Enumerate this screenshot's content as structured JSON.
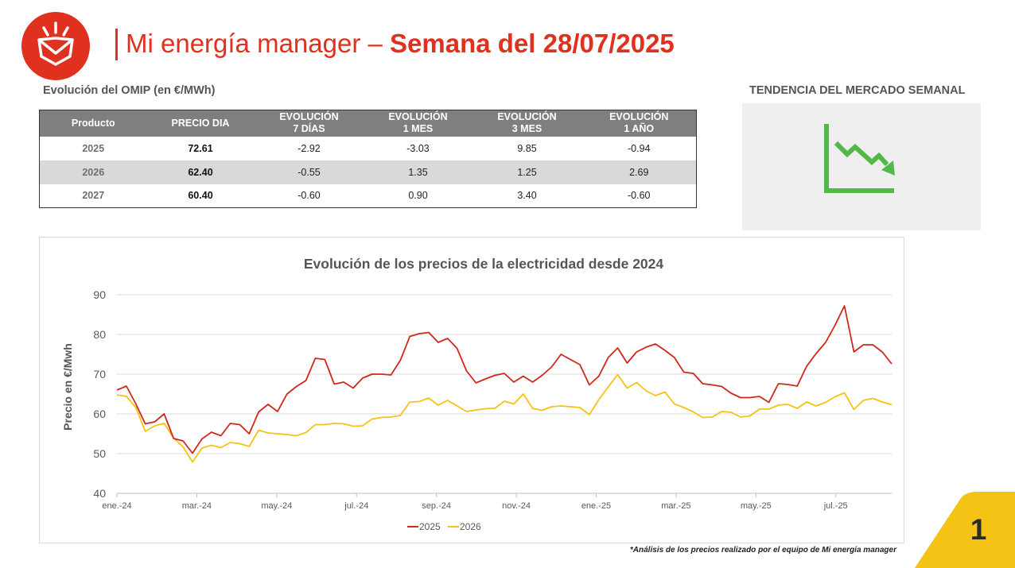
{
  "header": {
    "title_light": "Mi energía manager",
    "title_dash": "–",
    "title_bold": "Semana del 28/07/2025"
  },
  "logo": {
    "icon": "envelope-sun-icon",
    "color": "#e0301e"
  },
  "omip": {
    "title": "Evolución del OMIP (en €/MWh)",
    "columns": [
      [
        "Producto"
      ],
      [
        "PRECIO DIA"
      ],
      [
        "EVOLUCIÓN",
        "7 DÍAS"
      ],
      [
        "EVOLUCIÓN",
        "1 MES"
      ],
      [
        "EVOLUCIÓN",
        "3 MES"
      ],
      [
        "EVOLUCIÓN",
        "1 AÑO"
      ]
    ],
    "rows": [
      [
        "2025",
        "72.61",
        "-2.92",
        "-3.03",
        "9.85",
        "-0.94"
      ],
      [
        "2026",
        "62.40",
        "-0.55",
        "1.35",
        "1.25",
        "2.69"
      ],
      [
        "2027",
        "60.40",
        "-0.60",
        "0.90",
        "3.40",
        "-0.60"
      ]
    ]
  },
  "trend": {
    "title": "TENDENCIA DEL MERCADO SEMANAL",
    "icon": "downtrend-chart-icon",
    "color": "#52b848"
  },
  "chart_data": {
    "type": "line",
    "title": "Evolución de los precios de la electricidad desde 2024",
    "ylabel": "Precio en €/Mwh",
    "xlabel": "",
    "ylim": [
      40,
      90
    ],
    "yticks": [
      40,
      50,
      60,
      70,
      80,
      90
    ],
    "x_tick_labels": [
      "ene.-24",
      "mar.-24",
      "may.-24",
      "jul.-24",
      "sep.-24",
      "nov.-24",
      "ene.-25",
      "mar.-25",
      "may.-25",
      "jul.-25"
    ],
    "grid": true,
    "legend": "bottom-center",
    "series": [
      {
        "name": "2025",
        "color": "#d0281a",
        "values": [
          66,
          67,
          62.5,
          57.5,
          58,
          60,
          53.8,
          53.2,
          50.1,
          53.7,
          55.4,
          54.5,
          57.6,
          57.3,
          55,
          60.5,
          62.4,
          60.6,
          65,
          66.9,
          68.4,
          74,
          73.7,
          67.5,
          68,
          66.5,
          69,
          70,
          70,
          69.8,
          73.5,
          79.5,
          80.2,
          80.5,
          78,
          79,
          76.5,
          70.8,
          67.8,
          68.8,
          69.7,
          70.2,
          68,
          69.5,
          68,
          69.7,
          71.8,
          75,
          73.7,
          72.4,
          67.3,
          69.5,
          74.2,
          76.6,
          72.8,
          75.6,
          76.8,
          77.6,
          76,
          74.2,
          70.5,
          70.2,
          67.6,
          67.3,
          66.9,
          65.2,
          64.1,
          64.1,
          64.4,
          62.9,
          67.6,
          67.4,
          67,
          72,
          75.2,
          78,
          82.3,
          87.2,
          75.6,
          77.4,
          77.4,
          75.6,
          72.6
        ]
      },
      {
        "name": "2026",
        "color": "#f5c216",
        "values": [
          64.8,
          64.4,
          61.6,
          55.6,
          57,
          57.6,
          53.9,
          51.7,
          47.9,
          51.4,
          52.1,
          51.5,
          52.8,
          52.5,
          51.8,
          55.9,
          55.2,
          55,
          54.8,
          54.5,
          55.3,
          57.3,
          57.3,
          57.6,
          57.5,
          56.9,
          57,
          58.7,
          59.1,
          59.2,
          59.6,
          63,
          63.1,
          64,
          62.2,
          63.4,
          62,
          60.6,
          61,
          61.3,
          61.4,
          63.2,
          62.5,
          65,
          61.4,
          60.9,
          61.8,
          62,
          61.8,
          61.6,
          59.8,
          63.6,
          66.8,
          69.9,
          66.5,
          67.9,
          65.8,
          64.6,
          65.5,
          62.5,
          61.6,
          60.5,
          59.1,
          59.2,
          60.6,
          60.4,
          59.2,
          59.5,
          61.2,
          61.2,
          62.2,
          62.4,
          61.4,
          63,
          62,
          62.9,
          64.3,
          65.3,
          61.1,
          63.4,
          63.9,
          63,
          62.3
        ]
      }
    ]
  },
  "footer": {
    "note": "*Análisis de los precios realizado por el equipo de Mi energía manager",
    "page_number": "1",
    "corner_color": "#f5c216"
  }
}
